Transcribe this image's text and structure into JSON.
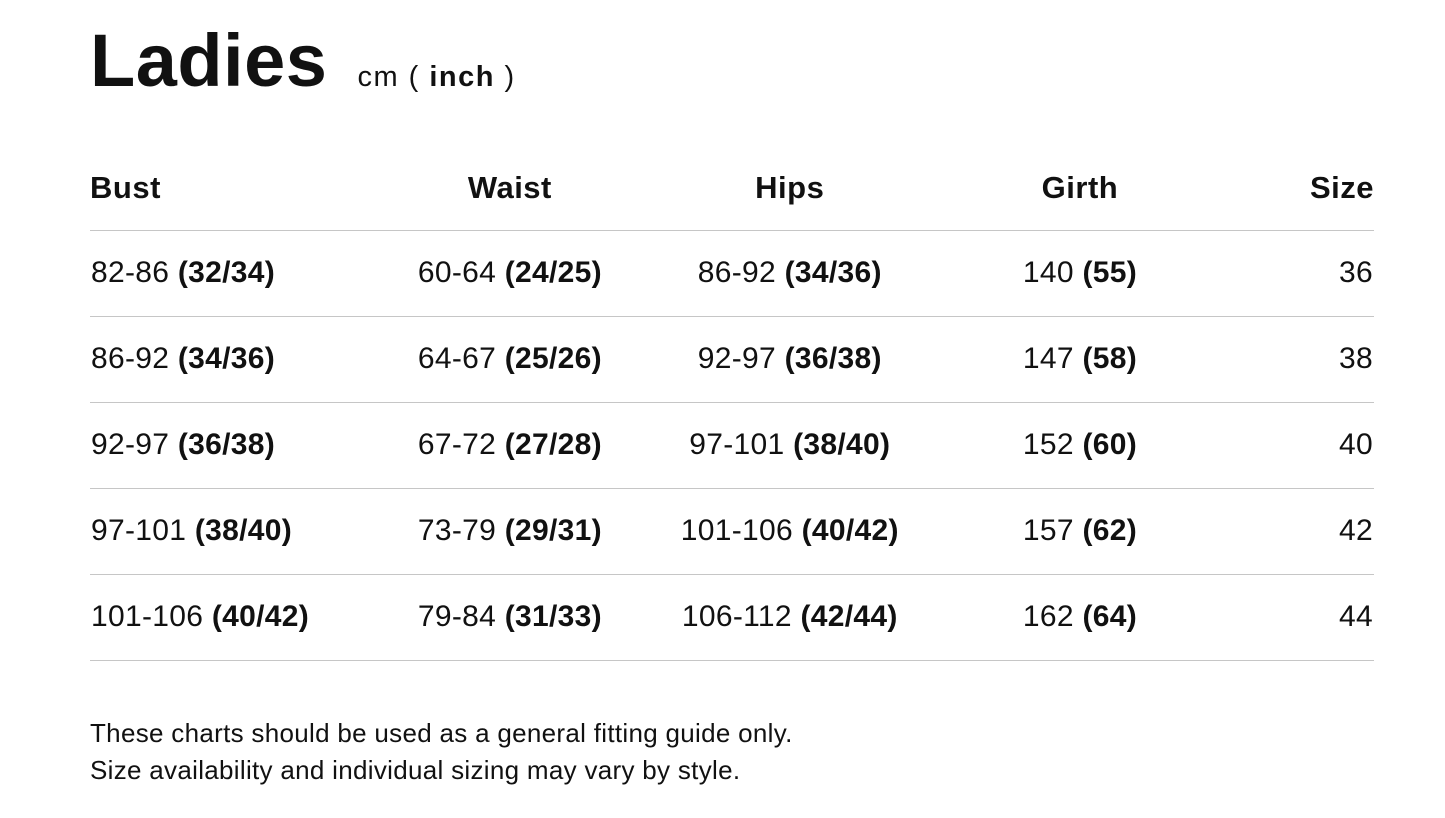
{
  "title": "Ladies",
  "units": {
    "before": "cm ( ",
    "bold": "inch",
    "after": " )"
  },
  "table": {
    "columns": [
      "Bust",
      "Waist",
      "Hips",
      "Girth",
      "Size"
    ],
    "rows": [
      {
        "bust": {
          "cm": "82-86",
          "inch": "(32/34)"
        },
        "waist": {
          "cm": "60-64",
          "inch": "(24/25)"
        },
        "hips": {
          "cm": "86-92",
          "inch": "(34/36)"
        },
        "girth": {
          "cm": "140",
          "inch": "(55)"
        },
        "size": "36"
      },
      {
        "bust": {
          "cm": "86-92",
          "inch": "(34/36)"
        },
        "waist": {
          "cm": "64-67",
          "inch": "(25/26)"
        },
        "hips": {
          "cm": "92-97",
          "inch": "(36/38)"
        },
        "girth": {
          "cm": "147",
          "inch": "(58)"
        },
        "size": "38"
      },
      {
        "bust": {
          "cm": "92-97",
          "inch": "(36/38)"
        },
        "waist": {
          "cm": "67-72",
          "inch": "(27/28)"
        },
        "hips": {
          "cm": "97-101",
          "inch": "(38/40)"
        },
        "girth": {
          "cm": "152",
          "inch": "(60)"
        },
        "size": "40"
      },
      {
        "bust": {
          "cm": "97-101",
          "inch": "(38/40)"
        },
        "waist": {
          "cm": "73-79",
          "inch": "(29/31)"
        },
        "hips": {
          "cm": "101-106",
          "inch": "(40/42)"
        },
        "girth": {
          "cm": "157",
          "inch": "(62)"
        },
        "size": "42"
      },
      {
        "bust": {
          "cm": "101-106",
          "inch": "(40/42)"
        },
        "waist": {
          "cm": "79-84",
          "inch": "(31/33)"
        },
        "hips": {
          "cm": "106-112",
          "inch": "(42/44)"
        },
        "girth": {
          "cm": "162",
          "inch": "(64)"
        },
        "size": "44"
      }
    ]
  },
  "notes": {
    "line1": "These charts should be used as a general fitting guide only.",
    "line2": "Size availability and individual sizing may vary by style."
  },
  "colors": {
    "text": "#111111",
    "divider": "#c6c6c6",
    "background": "#ffffff"
  }
}
